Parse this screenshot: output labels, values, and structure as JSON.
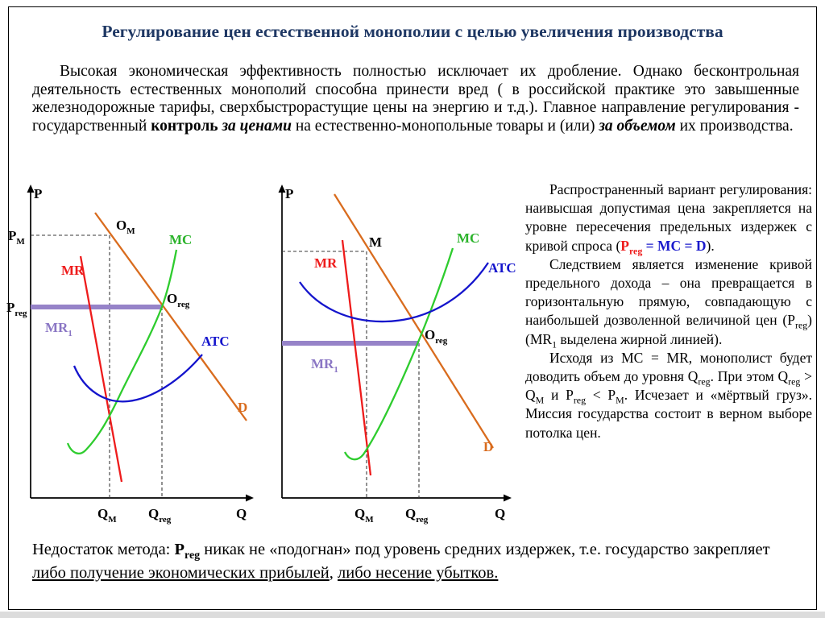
{
  "title": "Регулирование цен естественной монополии с целью увеличения производства",
  "colors": {
    "title": "#1f3864",
    "mc": "#2ecc2e",
    "mr": "#ee1c1c",
    "atc": "#1414cc",
    "demand": "#d96c1e",
    "regulated_price_line": "#9683c8",
    "accent_red_text": "#ee1c1c",
    "accent_blue_text": "#1a1acc"
  },
  "intro_runs": [
    {
      "t": "Высокая экономическая эффективность полностью исключает их дробление. Однако бесконтрольная деятельность естественных монополий способна принести вред ( в российской практике это завышенные железнодорожные тарифы, сверхбыстрорастущие цены на энергию и т.д.). Главное направление регулирования - государственный "
    },
    {
      "t": "контроль",
      "cls": "b"
    },
    {
      "t": " "
    },
    {
      "t": "за ценами",
      "cls": "bi"
    },
    {
      "t": " на естественно-монопольные товары и (или) "
    },
    {
      "t": "за объемом",
      "cls": "bi"
    },
    {
      "t": " их производства."
    }
  ],
  "diagram_left": {
    "labels": {
      "p": "P",
      "q": "Q",
      "pm_base": "P",
      "pm_sub": "M",
      "preg_base": "P",
      "preg_sub": "reg",
      "om_base": "O",
      "om_sub": "M",
      "oreg_base": "O",
      "oreg_sub": "reg",
      "qm_base": "Q",
      "qm_sub": "M",
      "qreg_base": "Q",
      "qreg_sub": "reg",
      "mr": "MR",
      "mr1_base": "MR",
      "mr1_sub": "1",
      "mc": "MC",
      "atc": "ATC",
      "d": "D"
    }
  },
  "diagram_right": {
    "labels": {
      "p": "P",
      "q": "Q",
      "m": "M",
      "oreg_base": "O",
      "oreg_sub": "reg",
      "qm_base": "Q",
      "qm_sub": "M",
      "qreg_base": "Q",
      "qreg_sub": "reg",
      "mr": "MR",
      "mr1_base": "MR",
      "mr1_sub": "1",
      "mc": "MC",
      "atc": "ATC",
      "d": "D"
    }
  },
  "side": {
    "p1_runs": [
      {
        "t": "Распространенный вариант регулирования: наивысшая допустимая цена закрепляется на уровне пересечения предельных издержек с кривой спроса ("
      },
      {
        "t": "P",
        "cls": "b red"
      },
      {
        "t": "reg",
        "cls": "b red",
        "sub": true
      },
      {
        "t": " = MC = D",
        "cls": "b blue"
      },
      {
        "t": ")."
      }
    ],
    "p2_runs": [
      {
        "t": "Следствием является изменение кривой предельного дохода – она превращается в горизонтальную прямую, совпадающую с наибольшей дозволенной величиной цен (P"
      },
      {
        "t": "reg",
        "sub": true
      },
      {
        "t": ") (MR"
      },
      {
        "t": "1",
        "sub": true
      },
      {
        "t": " выделена жирной линией)."
      }
    ],
    "p3_runs": [
      {
        "t": "Исходя из MC = MR, монополист будет доводить объем до уровня Q"
      },
      {
        "t": "reg",
        "sub": true
      },
      {
        "t": ". При этом Q"
      },
      {
        "t": "reg",
        "sub": true
      },
      {
        "t": " > Q"
      },
      {
        "t": "M",
        "sub": true
      },
      {
        "t": " и P"
      },
      {
        "t": "reg",
        "sub": true
      },
      {
        "t": " < P"
      },
      {
        "t": "M",
        "sub": true
      },
      {
        "t": ". Исчезает и «мёртвый груз». Миссия государства состоит в верном выборе потолка цен."
      }
    ]
  },
  "bottom_runs": [
    {
      "t": "Недостаток метода: "
    },
    {
      "t": "P",
      "cls": "b"
    },
    {
      "t": "reg",
      "cls": "b",
      "sub": true
    },
    {
      "t": " никак не «подогнан» под уровень средних издержек, т.е. государство закрепляет "
    },
    {
      "t": "либо получение экономических прибылей",
      "cls": "ul"
    },
    {
      "t": ", "
    },
    {
      "t": "либо несение убытков.",
      "cls": "ul"
    }
  ]
}
